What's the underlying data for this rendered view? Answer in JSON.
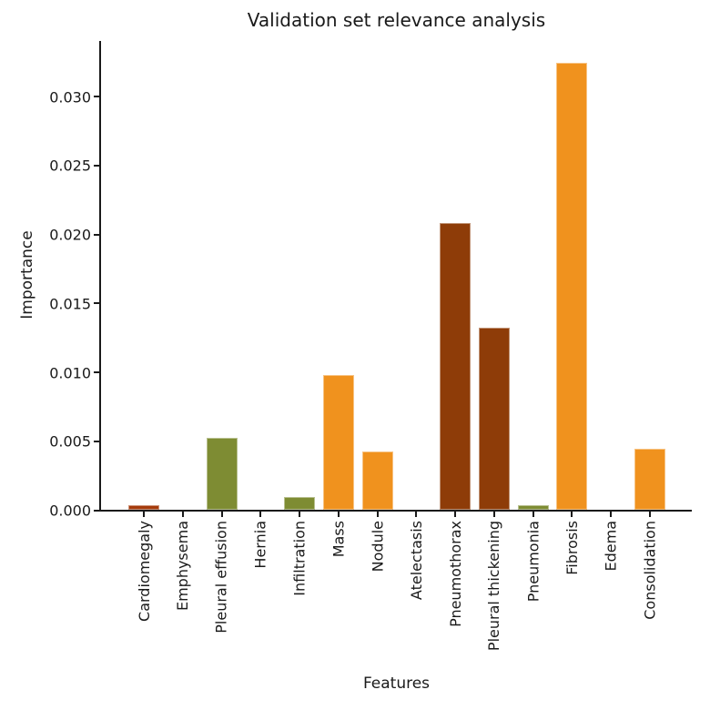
{
  "title": "Validation set relevance analysis",
  "colors": {
    "orange": "#f0921e",
    "olive": "#7e8c33",
    "dark_brown": "#8e3c08",
    "rust": "#a53b0b",
    "axis": "#1a1a1a",
    "background": "#ffffff"
  },
  "chart_data": {
    "type": "bar",
    "title": "Validation set relevance analysis",
    "xlabel": "Features",
    "ylabel": "Importance",
    "categories": [
      "Cardiomegaly",
      "Emphysema",
      "Pleural effusion",
      "Hernia",
      "Infiltration",
      "Mass",
      "Nodule",
      "Atelectasis",
      "Pneumothorax",
      "Pleural thickening",
      "Pneumonia",
      "Fibrosis",
      "Edema",
      "Consolidation"
    ],
    "values": [
      0.0003,
      0.0,
      0.0052,
      0.0,
      0.0009,
      0.0098,
      0.0042,
      0.0,
      0.0208,
      0.0132,
      0.0003,
      0.0324,
      0.0,
      0.0044
    ],
    "bar_colors": [
      "#a53b0b",
      "#f0921e",
      "#7e8c33",
      "#f0921e",
      "#7e8c33",
      "#f0921e",
      "#f0921e",
      "#f0921e",
      "#8e3c08",
      "#8e3c08",
      "#7e8c33",
      "#f0921e",
      "#f0921e",
      "#f0921e"
    ],
    "ytick_labels": [
      "0.000",
      "0.005",
      "0.010",
      "0.015",
      "0.020",
      "0.025",
      "0.030"
    ],
    "yticks": [
      0.0,
      0.005,
      0.01,
      0.015,
      0.02,
      0.025,
      0.03
    ],
    "ylim": [
      0,
      0.034
    ],
    "grid": false,
    "legend": null,
    "spines": [
      "left",
      "bottom"
    ]
  }
}
